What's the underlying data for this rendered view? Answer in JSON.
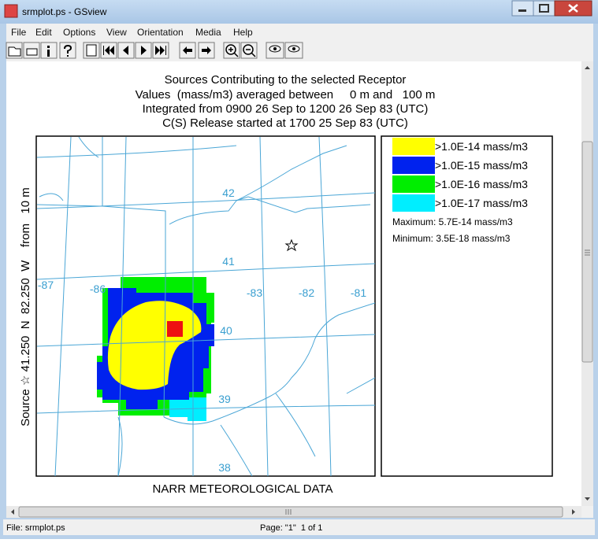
{
  "window": {
    "title": "srmplot.ps - GSview"
  },
  "menu": [
    "File",
    "Edit",
    "Options",
    "View",
    "Orientation",
    "Media",
    "Help"
  ],
  "plot": {
    "title_lines": [
      "Sources Contributing to the selected Receptor",
      "Values  (mass/m3) averaged between     0 m and   100 m",
      "Integrated from 0900 26 Sep to 1200 26 Sep 83 (UTC)",
      "C(S) Release started at 1700 25 Sep 83 (UTC)"
    ],
    "side_label": "Source ☆ 41.250  N  82.250  W    from   10 m",
    "longitude_labels": [
      "-87",
      "-86",
      "-83",
      "-82",
      "-81"
    ],
    "latitude_labels": [
      "42",
      "41",
      "40",
      "39",
      "38"
    ],
    "footer": "NARR METEOROLOGICAL DATA",
    "legend": [
      {
        "label": ">1.0E-14 mass/m3",
        "color": "#ffff00"
      },
      {
        "label": ">1.0E-15 mass/m3",
        "color": "#0022ee"
      },
      {
        "label": ">1.0E-16 mass/m3",
        "color": "#00ee00"
      },
      {
        "label": ">1.0E-17 mass/m3",
        "color": "#00eeff"
      }
    ],
    "maximum": "Maximum: 5.7E-14 mass/m3",
    "minimum": "Minimum: 3.5E-18 mass/m3"
  },
  "status": {
    "file": "File: srmplot.ps",
    "page": "Page: \"1\"  1 of 1"
  }
}
